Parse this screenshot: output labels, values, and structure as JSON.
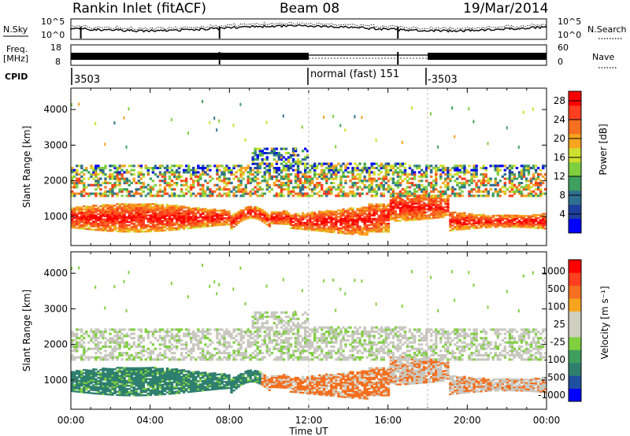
{
  "header": {
    "station": "Rankin Inlet (fitACF)",
    "beam": "Beam 08",
    "date": "19/Mar/2014"
  },
  "top_panels": {
    "nsky_label": "N.Sky",
    "nsearch_label": "N.Search",
    "nsky_ticks": [
      "10^5",
      "10^0"
    ],
    "freq_label_1": "Freq.",
    "freq_label_2": "[MHz]",
    "freq_ticks": [
      "18",
      "8"
    ],
    "nave_label": "Nave",
    "nave_ticks": [
      "60",
      "0"
    ],
    "cpid_label": "CPID",
    "cpid_segments": [
      "3503",
      "normal (fast) 151",
      "-3503"
    ]
  },
  "colors": {
    "power_scale": [
      "#0000ff",
      "#1f3f9f",
      "#2f6f8f",
      "#3f9f5f",
      "#7fcf3f",
      "#cfdf2f",
      "#f7a41f",
      "#f46f1f",
      "#ff3f1f",
      "#ff0000"
    ],
    "velocity_scale": [
      "#0000ff",
      "#1f4f9f",
      "#2f7f6f",
      "#3f9f5f",
      "#7fcf3f",
      "#cfcfc0",
      "#cfcfc0",
      "#f7a41f",
      "#f46f1f",
      "#ff3f1f",
      "#ff0000"
    ],
    "velocity_ground": "#c8c8c0"
  },
  "chart_data": [
    {
      "type": "heatmap",
      "title": "",
      "xlabel": "Time UT",
      "ylabel": "Slant Range [km]",
      "x_ticks": [
        "00:00",
        "04:00",
        "08:00",
        "12:00",
        "16:00",
        "20:00",
        "00:00"
      ],
      "x_range_hours": [
        0,
        24
      ],
      "y_ticks": [
        "1000",
        "2000",
        "3000",
        "4000"
      ],
      "ylim": [
        180,
        4600
      ],
      "colorbar_label": "Power [dB]",
      "colorbar_ticks": [
        "4",
        "8",
        "12",
        "16",
        "20",
        "24",
        "28"
      ],
      "colorbar_range": [
        0,
        30
      ]
    },
    {
      "type": "heatmap",
      "title": "",
      "xlabel": "Time UT",
      "ylabel": "Slant Range [km]",
      "x_ticks": [
        "00:00",
        "04:00",
        "08:00",
        "12:00",
        "16:00",
        "20:00",
        "00:00"
      ],
      "x_range_hours": [
        0,
        24
      ],
      "y_ticks": [
        "1000",
        "2000",
        "3000",
        "4000"
      ],
      "ylim": [
        180,
        4600
      ],
      "colorbar_label": "Velocity [m s⁻¹]",
      "colorbar_ticks": [
        "1000",
        "500",
        "100",
        "25",
        "-25",
        "-100",
        "-500",
        "-1000"
      ]
    }
  ]
}
